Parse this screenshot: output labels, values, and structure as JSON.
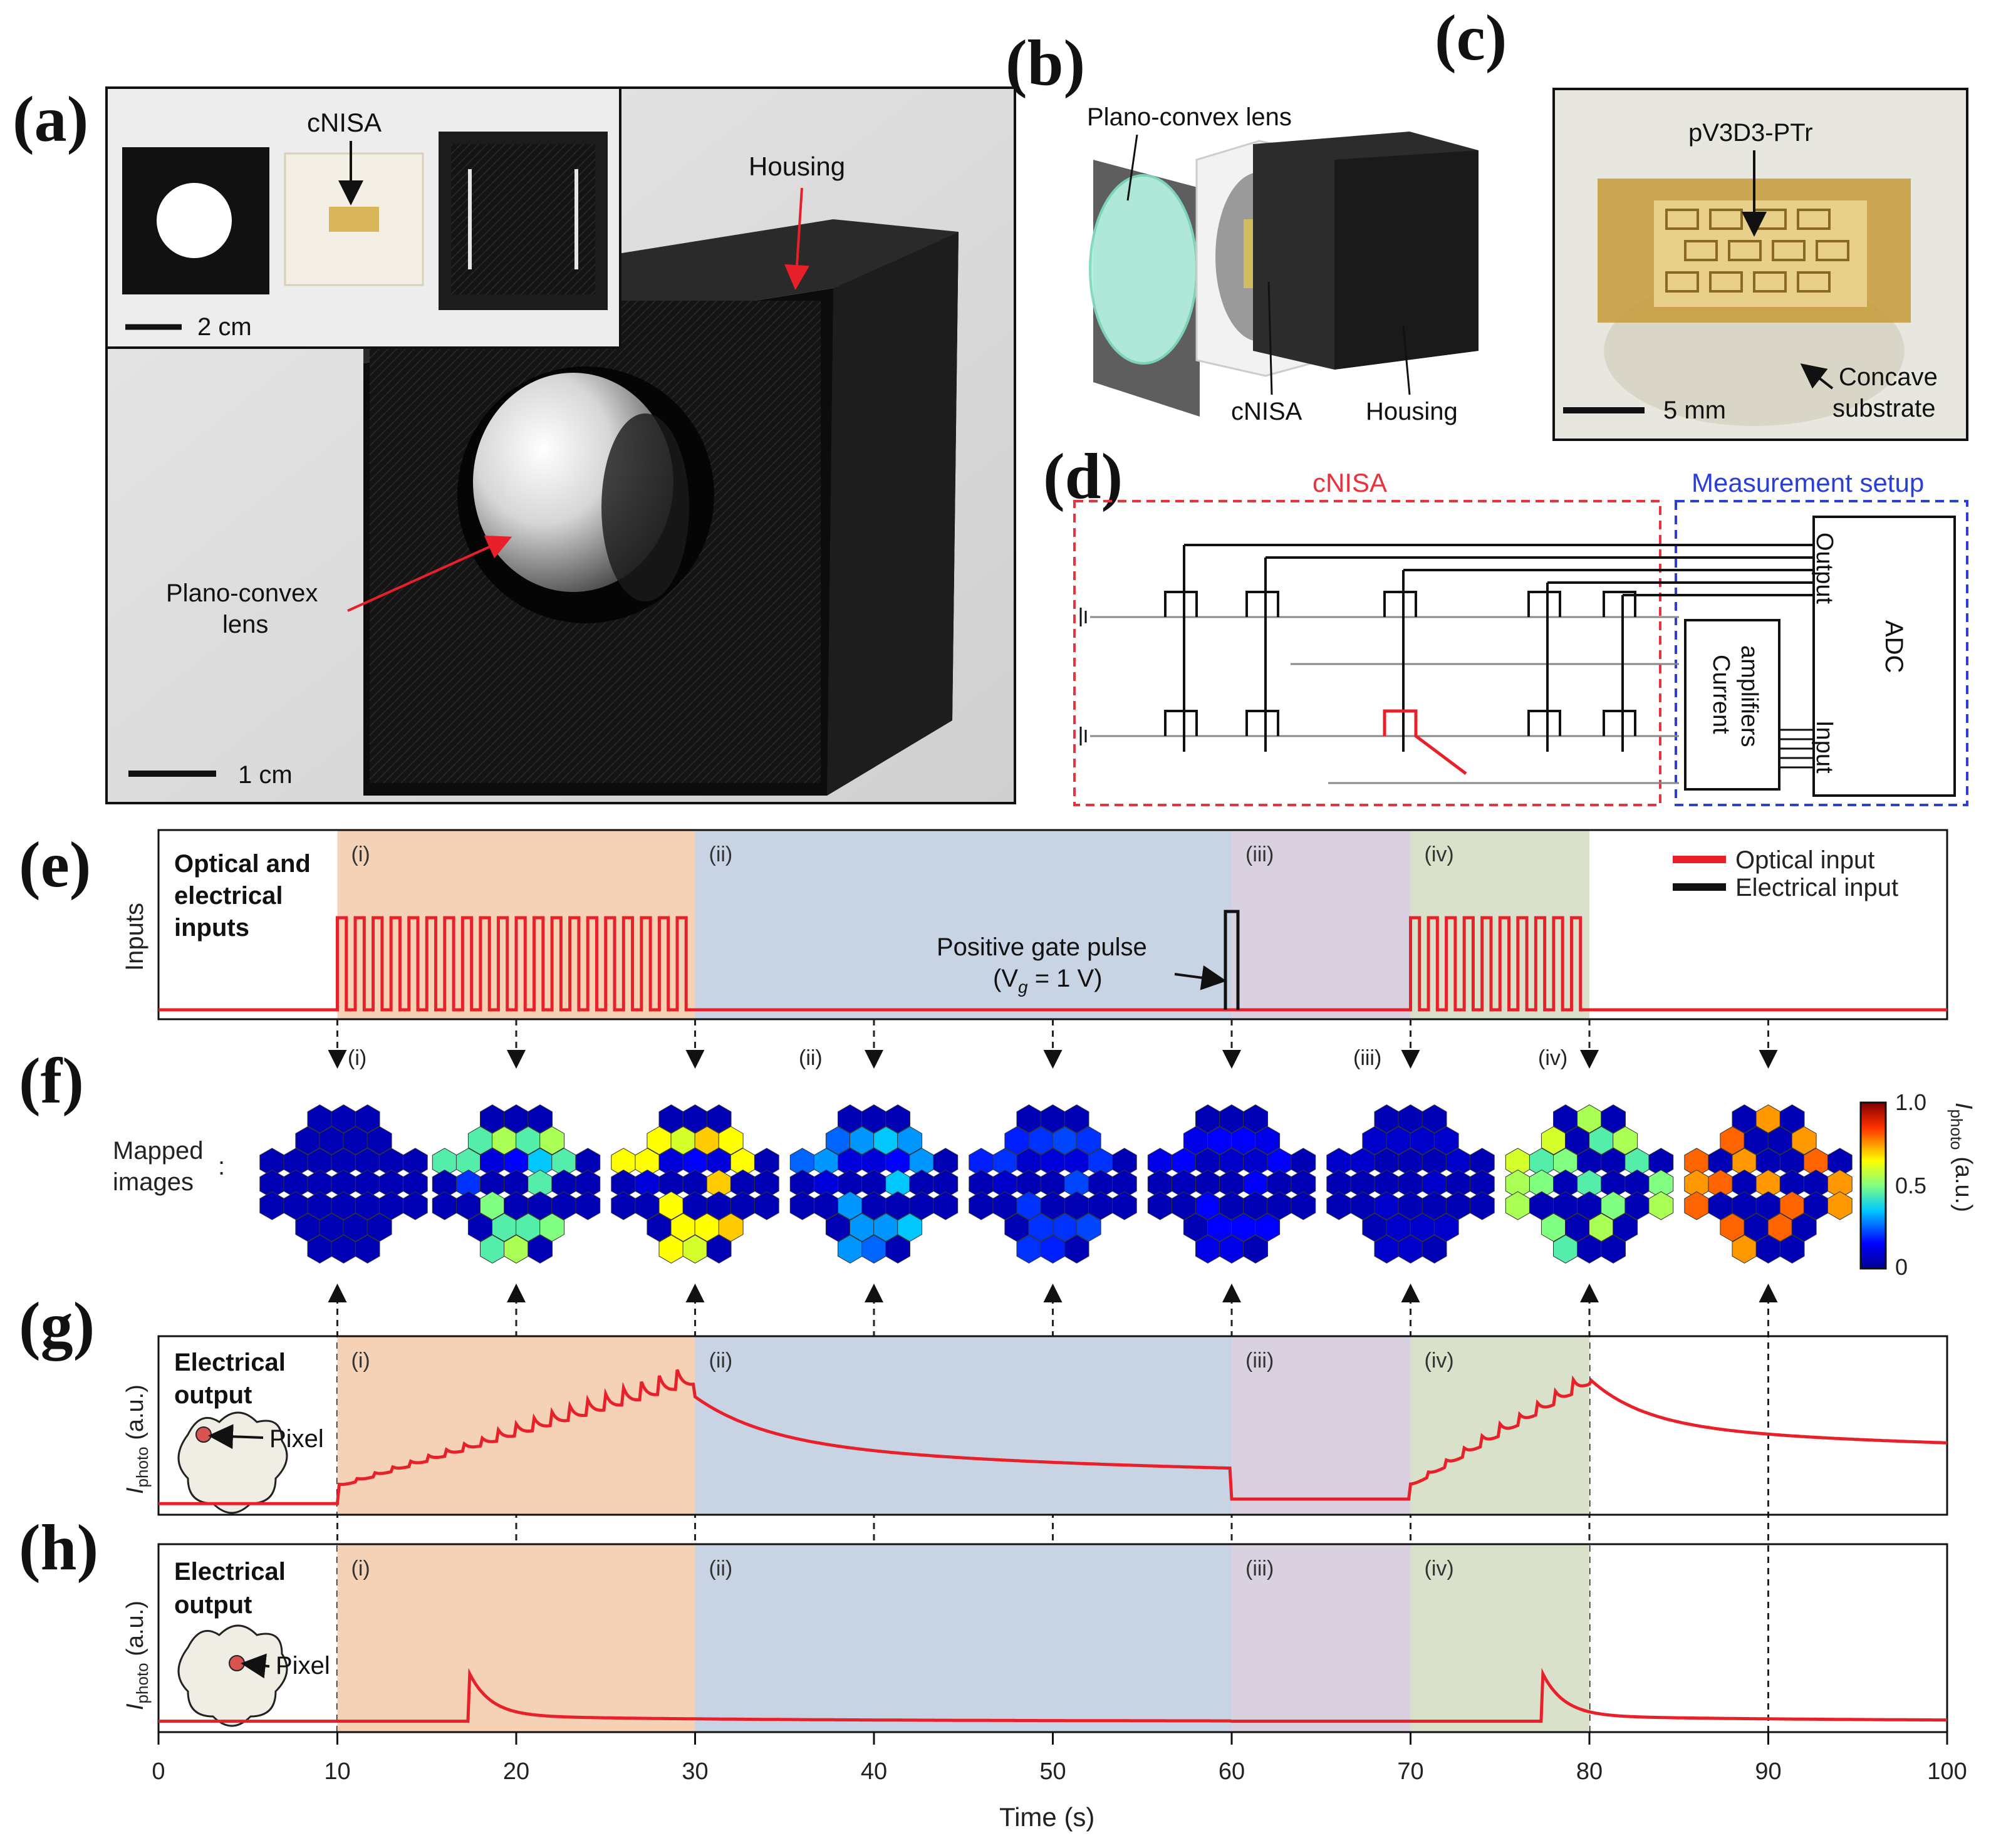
{
  "panel_labels": [
    "(a)",
    "(b)",
    "(c)",
    "(d)",
    "(e)",
    "(f)",
    "(g)",
    "(h)"
  ],
  "panel_a": {
    "inset_label": "cNISA",
    "inset_scale": "2 cm",
    "housing_label": "Housing",
    "lens_label_line1": "Plano-convex",
    "lens_label_line2": "lens",
    "scale": "1 cm"
  },
  "panel_b": {
    "lens_label": "Plano-convex lens",
    "cnisa_label": "cNISA",
    "housing_label": "Housing"
  },
  "panel_c": {
    "material_label": "pV3D3-PTr",
    "substrate_line1": "Concave",
    "substrate_line2": "substrate",
    "scale": "5 mm"
  },
  "panel_d": {
    "cnisa_title": "cNISA",
    "setup_title": "Measurement setup",
    "output_label": "Output",
    "input_label": "Input",
    "adc_label": "ADC",
    "amp_line1": "Current",
    "amp_line2": "amplifiers",
    "colors": {
      "cnisa": "#e8323c",
      "setup": "#2b3fd6",
      "active_pixel": "#e8202a"
    }
  },
  "segments": [
    {
      "label": "(i)",
      "start": 10,
      "end": 30,
      "color": "#f5d2b6"
    },
    {
      "label": "(ii)",
      "start": 30,
      "end": 60,
      "color": "#c8d3e3"
    },
    {
      "label": "(iii)",
      "start": 60,
      "end": 70,
      "color": "#d9d1e0"
    },
    {
      "label": "(iv)",
      "start": 70,
      "end": 80,
      "color": "#d9e1ca"
    }
  ],
  "panel_e": {
    "title_line1": "Optical and",
    "title_line2": "electrical",
    "title_line3": "inputs",
    "ylabel": "Inputs",
    "legend_optical": "Optical input",
    "legend_electrical": "Electrical input",
    "gate_line1": "Positive gate pulse",
    "gate_line2_prefix": "(V",
    "gate_line2_sub": "g",
    "gate_line2_suffix": " = 1 V)"
  },
  "panel_f": {
    "ylabel_line1": "Mapped",
    "ylabel_line2": "images",
    "colon": ":",
    "snapshot_labels": [
      "(i)",
      "(ii)",
      "(iii)",
      "(iv)"
    ],
    "colorbar_ticks": [
      "1.0",
      "0.5",
      "0"
    ],
    "colorbar_label_main": "I",
    "colorbar_label_sub": "photo",
    "colorbar_label_unit": " (a.u.)",
    "frames": [
      {
        "time": 10,
        "levels": [
          0.05,
          0.05,
          0.05,
          0.05,
          0.05,
          0.05,
          0.05,
          0.05,
          0.05,
          0.05,
          0.05,
          0.05,
          0.05,
          0.05,
          0.05,
          0.05,
          0.05,
          0.05,
          0.05,
          0.05,
          0.05,
          0.05,
          0.05,
          0.05,
          0.05,
          0.05,
          0.05,
          0.05,
          0.05,
          0.05,
          0.05,
          0.05,
          0.05,
          0.05,
          0.05,
          0.05,
          0.05
        ]
      },
      {
        "time": 20,
        "levels": [
          0.05,
          0.05,
          0.05,
          0.45,
          0.55,
          0.45,
          0.55,
          0.45,
          0.45,
          0.1,
          0.15,
          0.35,
          0.45,
          0.05,
          0.05,
          0.2,
          0.05,
          0.05,
          0.45,
          0.05,
          0.05,
          0.05,
          0.05,
          0.5,
          0.05,
          0.05,
          0.05,
          0.05,
          0.05,
          0.45,
          0.45,
          0.5,
          0.45,
          0.55,
          0.05,
          0.05,
          0.05
        ]
      },
      {
        "time": 30,
        "levels": [
          0.05,
          0.05,
          0.05,
          0.65,
          0.6,
          0.7,
          0.65,
          0.65,
          0.65,
          0.1,
          0.15,
          0.1,
          0.65,
          0.05,
          0.05,
          0.1,
          0.05,
          0.05,
          0.7,
          0.05,
          0.05,
          0.05,
          0.05,
          0.65,
          0.05,
          0.05,
          0.05,
          0.05,
          0.05,
          0.65,
          0.65,
          0.7,
          0.65,
          0.6,
          0.05,
          0.2,
          0.05
        ]
      },
      {
        "time": 40,
        "levels": [
          0.05,
          0.05,
          0.05,
          0.25,
          0.3,
          0.35,
          0.3,
          0.25,
          0.3,
          0.1,
          0.1,
          0.15,
          0.3,
          0.05,
          0.05,
          0.1,
          0.05,
          0.05,
          0.35,
          0.05,
          0.05,
          0.05,
          0.05,
          0.3,
          0.05,
          0.05,
          0.05,
          0.05,
          0.05,
          0.3,
          0.3,
          0.35,
          0.3,
          0.25,
          0.05,
          0.1,
          0.05
        ]
      },
      {
        "time": 50,
        "levels": [
          0.05,
          0.05,
          0.05,
          0.18,
          0.2,
          0.22,
          0.2,
          0.18,
          0.2,
          0.08,
          0.1,
          0.1,
          0.2,
          0.05,
          0.05,
          0.08,
          0.05,
          0.05,
          0.22,
          0.05,
          0.05,
          0.05,
          0.05,
          0.2,
          0.05,
          0.05,
          0.05,
          0.05,
          0.05,
          0.2,
          0.2,
          0.22,
          0.2,
          0.18,
          0.05,
          0.08,
          0.05
        ]
      },
      {
        "time": 60,
        "levels": [
          0.05,
          0.05,
          0.05,
          0.12,
          0.15,
          0.15,
          0.12,
          0.12,
          0.15,
          0.06,
          0.08,
          0.08,
          0.15,
          0.05,
          0.05,
          0.06,
          0.05,
          0.05,
          0.15,
          0.05,
          0.05,
          0.05,
          0.05,
          0.15,
          0.05,
          0.05,
          0.05,
          0.05,
          0.05,
          0.15,
          0.15,
          0.15,
          0.12,
          0.12,
          0.05,
          0.06,
          0.05
        ]
      },
      {
        "time": 70,
        "levels": [
          0.05,
          0.05,
          0.05,
          0.08,
          0.08,
          0.08,
          0.08,
          0.08,
          0.08,
          0.05,
          0.05,
          0.05,
          0.08,
          0.05,
          0.05,
          0.05,
          0.05,
          0.05,
          0.08,
          0.05,
          0.05,
          0.05,
          0.05,
          0.08,
          0.05,
          0.05,
          0.05,
          0.05,
          0.05,
          0.08,
          0.08,
          0.08,
          0.08,
          0.08,
          0.05,
          0.05,
          0.05
        ]
      },
      {
        "time": 80,
        "levels": [
          0.05,
          0.55,
          0.05,
          0.6,
          0.05,
          0.45,
          0.55,
          0.6,
          0.45,
          0.5,
          0.05,
          0.05,
          0.45,
          0.05,
          0.55,
          0.5,
          0.05,
          0.45,
          0.05,
          0.05,
          0.5,
          0.55,
          0.05,
          0.05,
          0.05,
          0.5,
          0.05,
          0.55,
          0.5,
          0.05,
          0.55,
          0.05,
          0.45,
          0.05,
          0.05,
          0.5,
          0.05
        ]
      },
      {
        "time": 90,
        "levels": [
          0.05,
          0.75,
          0.05,
          0.8,
          0.05,
          0.05,
          0.75,
          0.8,
          0.05,
          0.75,
          0.05,
          0.05,
          0.8,
          0.05,
          0.75,
          0.8,
          0.05,
          0.75,
          0.05,
          0.05,
          0.75,
          0.8,
          0.05,
          0.05,
          0.05,
          0.8,
          0.05,
          0.75,
          0.8,
          0.05,
          0.8,
          0.05,
          0.75,
          0.05,
          0.05,
          0.8,
          0.05
        ]
      }
    ]
  },
  "panel_g": {
    "title_line1": "Electrical",
    "title_line2": "output",
    "pixel_label": "Pixel"
  },
  "panel_h": {
    "title_line1": "Electrical",
    "title_line2": "output",
    "pixel_label": "Pixel"
  },
  "chart_data": [
    {
      "type": "line",
      "name": "e-inputs",
      "series": [
        {
          "name": "Optical input",
          "color": "#e8202a",
          "description": "square pulses 10-30 s and 70-80 s"
        },
        {
          "name": "Electrical input",
          "color": "#111111",
          "description": "positive gate pulse at 60 s"
        }
      ],
      "optical_pulse_windows": [
        [
          10,
          30
        ],
        [
          70,
          80
        ]
      ],
      "gate_pulse_time": 60,
      "xlim": [
        0,
        100
      ],
      "ylabel": "Inputs"
    },
    {
      "type": "line",
      "name": "g-output",
      "ylabel_main": "I",
      "ylabel_sub": "photo",
      "ylabel_unit": " (a.u.)",
      "x": [
        0,
        10,
        30,
        40,
        50,
        60,
        70,
        80,
        100
      ],
      "y": [
        0.02,
        0.15,
        0.95,
        0.38,
        0.27,
        0.18,
        0.05,
        0.92,
        0.35
      ],
      "xlim": [
        0,
        100
      ],
      "ylim": [
        0,
        1
      ]
    },
    {
      "type": "line",
      "name": "h-output",
      "ylabel_main": "I",
      "ylabel_sub": "photo",
      "ylabel_unit": " (a.u.)",
      "x": [
        0,
        17.3,
        30,
        60,
        77.3,
        100
      ],
      "y": [
        0.02,
        0.35,
        0.06,
        0.02,
        0.35,
        0.02
      ],
      "xlim": [
        0,
        100
      ],
      "ylim": [
        0,
        1
      ],
      "xlabel": "Time (s)",
      "xticks": [
        0,
        10,
        20,
        30,
        40,
        50,
        60,
        70,
        80,
        90,
        100
      ]
    }
  ]
}
